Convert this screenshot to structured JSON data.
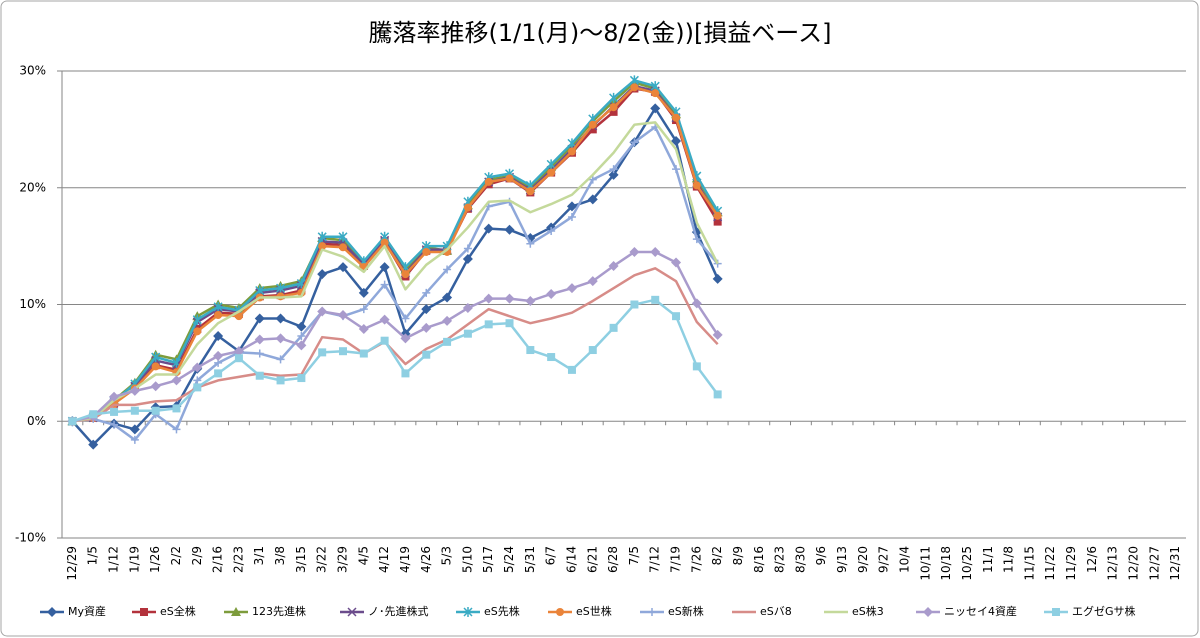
{
  "chart_data": {
    "type": "line",
    "title": "騰落率推移(1/1(月)～8/2(金))[損益ベース]",
    "categories": [
      "12/29",
      "1/5",
      "1/12",
      "1/19",
      "1/26",
      "2/2",
      "2/9",
      "2/16",
      "2/23",
      "3/1",
      "3/8",
      "3/15",
      "3/22",
      "3/29",
      "4/5",
      "4/12",
      "4/19",
      "4/26",
      "5/3",
      "5/10",
      "5/17",
      "5/24",
      "5/31",
      "6/7",
      "6/14",
      "6/21",
      "6/28",
      "7/5",
      "7/12",
      "7/19",
      "7/26",
      "8/2",
      "8/9",
      "8/16",
      "8/23",
      "8/30",
      "9/6",
      "9/13",
      "9/20",
      "9/27",
      "10/4",
      "10/11",
      "10/18",
      "10/25",
      "11/1",
      "11/8",
      "11/15",
      "11/22",
      "11/29",
      "12/6",
      "12/13",
      "12/20",
      "12/27",
      "12/31"
    ],
    "ylim": [
      -10,
      30
    ],
    "yticks": [
      {
        "value": -10,
        "label": "-10%"
      },
      {
        "value": 0,
        "label": "0%"
      },
      {
        "value": 10,
        "label": "10%"
      },
      {
        "value": 20,
        "label": "20%"
      },
      {
        "value": 30,
        "label": "30%"
      }
    ],
    "grid": true,
    "legend": "bottom",
    "series": [
      {
        "name": "My資産",
        "color": "#35609f",
        "marker": "diamond",
        "values": [
          0,
          -2.0,
          -0.2,
          -0.7,
          1.2,
          1.3,
          4.5,
          7.3,
          6.0,
          8.8,
          8.8,
          8.1,
          12.6,
          13.2,
          11.0,
          13.2,
          7.5,
          9.6,
          10.6,
          13.9,
          16.5,
          16.4,
          15.7,
          16.6,
          18.4,
          19.0,
          21.1,
          23.9,
          26.8,
          24.0,
          16.2,
          12.2,
          null,
          null,
          null,
          null,
          null,
          null,
          null,
          null,
          null,
          null,
          null,
          null,
          null,
          null,
          null,
          null,
          null,
          null,
          null,
          null,
          null,
          null
        ]
      },
      {
        "name": "eS全株",
        "color": "#b3323c",
        "marker": "square",
        "values": [
          0,
          0.3,
          1.5,
          2.9,
          4.8,
          4.4,
          7.9,
          9.3,
          9.2,
          10.7,
          10.8,
          11.2,
          15.2,
          15.1,
          13.3,
          15.4,
          12.4,
          14.6,
          14.6,
          18.2,
          20.3,
          20.8,
          19.6,
          21.3,
          23.0,
          25.0,
          26.5,
          28.5,
          28.2,
          25.8,
          20.1,
          17.1,
          null,
          null,
          null,
          null,
          null,
          null,
          null,
          null,
          null,
          null,
          null,
          null,
          null,
          null,
          null,
          null,
          null,
          null,
          null,
          null,
          null,
          null
        ]
      },
      {
        "name": "123先進株",
        "color": "#7d9c3c",
        "marker": "triangle",
        "values": [
          0,
          0.4,
          1.8,
          3.3,
          5.7,
          5.3,
          9.0,
          10.0,
          9.7,
          11.4,
          11.6,
          12.0,
          15.7,
          15.5,
          13.6,
          15.6,
          13.0,
          14.9,
          14.6,
          18.5,
          20.7,
          21.0,
          20.0,
          21.8,
          23.6,
          25.7,
          27.4,
          29.0,
          28.5,
          26.3,
          20.8,
          17.9,
          null,
          null,
          null,
          null,
          null,
          null,
          null,
          null,
          null,
          null,
          null,
          null,
          null,
          null,
          null,
          null,
          null,
          null,
          null,
          null,
          null,
          null
        ]
      },
      {
        "name": "ノ･先進株式",
        "color": "#6b4c8c",
        "marker": "x",
        "values": [
          0,
          0.3,
          1.6,
          3.0,
          5.2,
          4.8,
          8.5,
          9.6,
          9.4,
          11.0,
          11.2,
          11.6,
          15.4,
          15.3,
          13.4,
          15.5,
          12.7,
          14.7,
          14.7,
          18.3,
          20.5,
          20.9,
          19.8,
          21.5,
          23.3,
          25.3,
          27.0,
          28.7,
          28.3,
          26.0,
          20.4,
          17.5,
          null,
          null,
          null,
          null,
          null,
          null,
          null,
          null,
          null,
          null,
          null,
          null,
          null,
          null,
          null,
          null,
          null,
          null,
          null,
          null,
          null,
          null
        ]
      },
      {
        "name": "eS先株",
        "color": "#3aabc4",
        "marker": "asterisk",
        "values": [
          0,
          0.4,
          1.7,
          3.2,
          5.5,
          5.0,
          8.7,
          9.8,
          9.5,
          11.2,
          11.4,
          11.8,
          15.8,
          15.8,
          13.7,
          15.8,
          13.2,
          15.0,
          15.0,
          18.8,
          20.9,
          21.2,
          20.2,
          22.0,
          23.8,
          25.9,
          27.7,
          29.2,
          28.7,
          26.5,
          21.0,
          18.0,
          null,
          null,
          null,
          null,
          null,
          null,
          null,
          null,
          null,
          null,
          null,
          null,
          null,
          null,
          null,
          null,
          null,
          null,
          null,
          null,
          null,
          null
        ]
      },
      {
        "name": "eS世株",
        "color": "#ea843a",
        "marker": "circle",
        "values": [
          0,
          0.3,
          1.5,
          2.8,
          4.7,
          4.2,
          7.7,
          9.1,
          9.0,
          10.6,
          10.7,
          11.0,
          15.0,
          14.9,
          13.2,
          15.3,
          12.6,
          14.5,
          14.5,
          18.3,
          20.5,
          20.8,
          19.7,
          21.3,
          23.1,
          25.4,
          26.9,
          28.6,
          28.1,
          26.0,
          20.2,
          17.6,
          null,
          null,
          null,
          null,
          null,
          null,
          null,
          null,
          null,
          null,
          null,
          null,
          null,
          null,
          null,
          null,
          null,
          null,
          null,
          null,
          null,
          null
        ]
      },
      {
        "name": "eS新株",
        "color": "#8fa8da",
        "marker": "plus",
        "values": [
          0,
          0.2,
          -0.3,
          -1.6,
          0.6,
          -0.7,
          3.5,
          5.0,
          5.9,
          5.8,
          5.3,
          7.3,
          9.4,
          9.0,
          9.6,
          11.7,
          8.8,
          11.0,
          13.0,
          14.8,
          18.4,
          18.8,
          15.2,
          16.3,
          17.5,
          20.7,
          21.6,
          23.9,
          25.2,
          21.6,
          15.6,
          13.5,
          null,
          null,
          null,
          null,
          null,
          null,
          null,
          null,
          null,
          null,
          null,
          null,
          null,
          null,
          null,
          null,
          null,
          null,
          null,
          null,
          null,
          null
        ]
      },
      {
        "name": "eSバ8",
        "color": "#d78c88",
        "marker": "none",
        "values": [
          0,
          0.2,
          1.4,
          1.4,
          1.7,
          1.8,
          2.9,
          3.5,
          3.8,
          4.1,
          3.9,
          4.0,
          7.2,
          7.0,
          5.8,
          6.8,
          4.9,
          6.2,
          7.0,
          8.3,
          9.6,
          9.0,
          8.4,
          8.8,
          9.3,
          10.3,
          11.4,
          12.5,
          13.1,
          12.0,
          8.5,
          6.6,
          null,
          null,
          null,
          null,
          null,
          null,
          null,
          null,
          null,
          null,
          null,
          null,
          null,
          null,
          null,
          null,
          null,
          null,
          null,
          null,
          null,
          null
        ]
      },
      {
        "name": "eS株3",
        "color": "#c4d99b",
        "marker": "none",
        "values": [
          0,
          0.3,
          1.8,
          2.8,
          4.0,
          4.0,
          6.6,
          8.4,
          9.4,
          10.6,
          10.6,
          10.7,
          14.7,
          14.1,
          12.8,
          15.0,
          11.3,
          13.4,
          14.7,
          16.6,
          18.8,
          18.9,
          17.9,
          18.6,
          19.4,
          21.1,
          23.0,
          25.4,
          25.6,
          23.3,
          17.0,
          13.5,
          null,
          null,
          null,
          null,
          null,
          null,
          null,
          null,
          null,
          null,
          null,
          null,
          null,
          null,
          null,
          null,
          null,
          null,
          null,
          null,
          null,
          null
        ]
      },
      {
        "name": "ニッセイ4資産",
        "color": "#a99bcc",
        "marker": "diamond",
        "values": [
          0,
          0.4,
          2.1,
          2.6,
          3.0,
          3.5,
          4.6,
          5.6,
          6.0,
          7.0,
          7.1,
          6.5,
          9.4,
          9.1,
          7.9,
          8.7,
          7.1,
          8.0,
          8.6,
          9.7,
          10.5,
          10.5,
          10.3,
          10.9,
          11.4,
          12.0,
          13.3,
          14.5,
          14.5,
          13.6,
          10.1,
          7.4,
          null,
          null,
          null,
          null,
          null,
          null,
          null,
          null,
          null,
          null,
          null,
          null,
          null,
          null,
          null,
          null,
          null,
          null,
          null,
          null,
          null,
          null
        ]
      },
      {
        "name": "エグゼGサ株",
        "color": "#8ecfe2",
        "marker": "square",
        "values": [
          0,
          0.6,
          0.8,
          0.9,
          0.9,
          1.1,
          2.9,
          4.1,
          5.4,
          3.9,
          3.5,
          3.7,
          5.9,
          6.0,
          5.8,
          6.9,
          4.1,
          5.7,
          6.8,
          7.5,
          8.3,
          8.4,
          6.1,
          5.5,
          4.4,
          6.1,
          8.0,
          10.0,
          10.4,
          9.0,
          4.7,
          2.3,
          null,
          null,
          null,
          null,
          null,
          null,
          null,
          null,
          null,
          null,
          null,
          null,
          null,
          null,
          null,
          null,
          null,
          null,
          null,
          null,
          null,
          null
        ]
      }
    ]
  }
}
